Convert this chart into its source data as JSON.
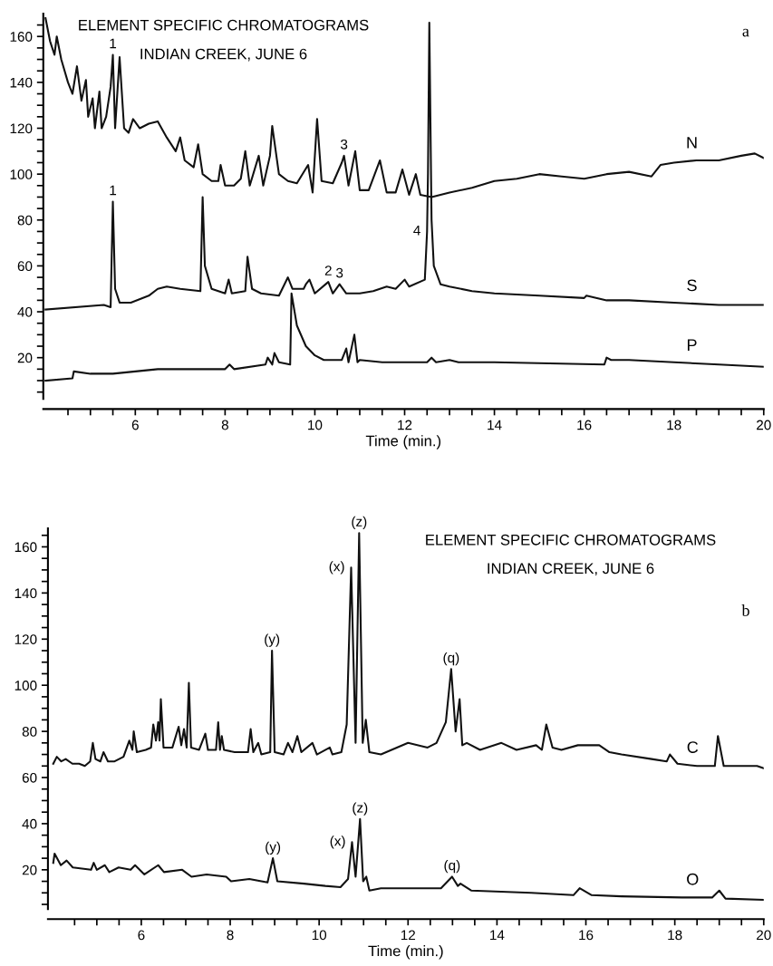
{
  "chart_data": [
    {
      "type": "line",
      "title": "ELEMENT SPECIFIC CHROMATOGRAMS",
      "subtitle": "INDIAN CREEK, JUNE 6",
      "xlabel": "Time (min.)",
      "xlim": [
        3.95,
        20
      ],
      "ylim": [
        2,
        170
      ],
      "xticks": [
        {
          "value": 4.5,
          "label": null
        },
        {
          "value": 5,
          "label": null
        },
        {
          "value": 5.5,
          "label": null
        },
        6,
        {
          "value": 6.5,
          "label": null
        },
        {
          "value": 7,
          "label": null
        },
        {
          "value": 7.5,
          "label": null
        },
        8,
        {
          "value": 8.5,
          "label": null
        },
        {
          "value": 9,
          "label": null
        },
        {
          "value": 9.5,
          "label": null
        },
        10,
        {
          "value": 10.5,
          "label": null
        },
        {
          "value": 11,
          "label": null
        },
        {
          "value": 11.5,
          "label": null
        },
        12,
        {
          "value": 12.5,
          "label": null
        },
        {
          "value": 13,
          "label": null
        },
        {
          "value": 13.5,
          "label": null
        },
        14,
        {
          "value": 14.5,
          "label": null
        },
        {
          "value": 15,
          "label": null
        },
        {
          "value": 15.5,
          "label": null
        },
        16,
        {
          "value": 16.5,
          "label": null
        },
        {
          "value": 17,
          "label": null
        },
        {
          "value": 17.5,
          "label": null
        },
        18,
        {
          "value": 18.5,
          "label": null
        },
        {
          "value": 19,
          "label": null
        },
        {
          "value": 19.5,
          "label": null
        },
        20
      ],
      "yticks": [
        {
          "value": 5,
          "label": null
        },
        {
          "value": 10,
          "label": null
        },
        {
          "value": 15,
          "label": null
        },
        20,
        {
          "value": 25,
          "label": null
        },
        {
          "value": 30,
          "label": null
        },
        {
          "value": 35,
          "label": null
        },
        40,
        {
          "value": 45,
          "label": null
        },
        {
          "value": 50,
          "label": null
        },
        {
          "value": 55,
          "label": null
        },
        60,
        {
          "value": 65,
          "label": null
        },
        {
          "value": 70,
          "label": null
        },
        {
          "value": 75,
          "label": null
        },
        80,
        {
          "value": 85,
          "label": null
        },
        {
          "value": 90,
          "label": null
        },
        {
          "value": 95,
          "label": null
        },
        100,
        {
          "value": 105,
          "label": null
        },
        {
          "value": 110,
          "label": null
        },
        {
          "value": 115,
          "label": null
        },
        120,
        {
          "value": 125,
          "label": null
        },
        {
          "value": 130,
          "label": null
        },
        {
          "value": 135,
          "label": null
        },
        140,
        {
          "value": 145,
          "label": null
        },
        {
          "value": 150,
          "label": null
        },
        {
          "value": 155,
          "label": null
        },
        160,
        {
          "value": 165,
          "label": null
        }
      ],
      "grid": false,
      "legend": false,
      "marker": "none",
      "line_style": "solid",
      "series": [
        {
          "name": "N",
          "color": "#111111",
          "x": [
            4.0,
            4.1,
            4.2,
            4.25,
            4.35,
            4.5,
            4.6,
            4.7,
            4.8,
            4.9,
            4.95,
            5.05,
            5.1,
            5.2,
            5.25,
            5.35,
            5.45,
            5.5,
            5.55,
            5.65,
            5.75,
            5.85,
            5.95,
            6.1,
            6.3,
            6.5,
            6.7,
            6.9,
            7.0,
            7.1,
            7.3,
            7.4,
            7.5,
            7.7,
            7.85,
            7.9,
            8.0,
            8.2,
            8.35,
            8.45,
            8.55,
            8.75,
            8.85,
            9.0,
            9.05,
            9.2,
            9.4,
            9.6,
            9.85,
            9.95,
            10.05,
            10.15,
            10.4,
            10.6,
            10.65,
            10.75,
            10.9,
            11.0,
            11.2,
            11.45,
            11.6,
            11.8,
            11.95,
            12.1,
            12.25,
            12.35,
            12.6,
            13.0,
            13.5,
            14.0,
            14.5,
            15.0,
            15.5,
            16.0,
            16.5,
            17.0,
            17.5,
            17.7,
            18.0,
            18.5,
            19.0,
            19.5,
            19.8,
            20.0
          ],
          "values": [
            168,
            158,
            152,
            160,
            150,
            140,
            135,
            147,
            132,
            141,
            125,
            133,
            120,
            136,
            120,
            125,
            138,
            152,
            120,
            151,
            120,
            118,
            124,
            120,
            122,
            123,
            116,
            110,
            116,
            106,
            103,
            113,
            100,
            97,
            97,
            104,
            95,
            95,
            98,
            110,
            95,
            108,
            95,
            108,
            121,
            100,
            97,
            96,
            104,
            92,
            124,
            97,
            96,
            105,
            108,
            95,
            110,
            93,
            93,
            106,
            92,
            92,
            102,
            91,
            100,
            91,
            90,
            92,
            94,
            97,
            98,
            100,
            99,
            98,
            100,
            101,
            99,
            104,
            105,
            106,
            106,
            108,
            109,
            107
          ]
        },
        {
          "name": "S",
          "color": "#111111",
          "x": [
            4.0,
            5.3,
            5.45,
            5.5,
            5.55,
            5.65,
            5.9,
            6.3,
            6.5,
            6.7,
            7.0,
            7.45,
            7.5,
            7.55,
            7.7,
            8.0,
            8.08,
            8.15,
            8.45,
            8.5,
            8.6,
            8.8,
            9.2,
            9.4,
            9.5,
            9.75,
            9.8,
            9.88,
            10.0,
            10.3,
            10.4,
            10.55,
            10.7,
            11.0,
            11.3,
            11.6,
            11.8,
            12.0,
            12.1,
            12.45,
            12.5,
            12.52,
            12.55,
            12.6,
            12.65,
            12.8,
            13.0,
            13.5,
            14.0,
            15.0,
            16.0,
            16.05,
            16.5,
            17.0,
            18.0,
            19.0,
            20.0
          ],
          "values": [
            41,
            43,
            42,
            88,
            50,
            44,
            44,
            47,
            50,
            51,
            50,
            49,
            90,
            60,
            50,
            48,
            54,
            48,
            49,
            64,
            50,
            48,
            47,
            55,
            50,
            50,
            52,
            54,
            48,
            53,
            48,
            52,
            48,
            48,
            49,
            51,
            50,
            54,
            51,
            54,
            75,
            100,
            166,
            80,
            60,
            52,
            51,
            49,
            48,
            47,
            46,
            47,
            45,
            45,
            44,
            43,
            43
          ]
        },
        {
          "name": "P",
          "color": "#111111",
          "x": [
            4.0,
            4.6,
            4.63,
            5.0,
            5.5,
            6.0,
            6.5,
            7.0,
            7.5,
            8.0,
            8.1,
            8.2,
            8.9,
            8.95,
            9.05,
            9.1,
            9.2,
            9.45,
            9.48,
            9.6,
            9.8,
            10.0,
            10.2,
            10.6,
            10.7,
            10.75,
            10.88,
            10.95,
            11.0,
            11.5,
            12.0,
            12.5,
            12.6,
            12.7,
            13.0,
            13.2,
            14.0,
            16.45,
            16.5,
            16.6,
            17.0,
            18.0,
            19.0,
            20.0
          ],
          "values": [
            10,
            11,
            14,
            13,
            13,
            14,
            15,
            15,
            15,
            15,
            17,
            15,
            17,
            20,
            17,
            22,
            18,
            17,
            48,
            34,
            25,
            21,
            19,
            19,
            24,
            18,
            30,
            18,
            19,
            18,
            18,
            18,
            20,
            18,
            19,
            18,
            18,
            17,
            20,
            19,
            19,
            18,
            17,
            16
          ]
        }
      ],
      "annotations": [
        "a",
        {
          "text": "1",
          "x": 5.5,
          "y": 152
        },
        {
          "text": "3",
          "x": 10.65,
          "y": 108
        },
        {
          "text": "1",
          "x": 5.5,
          "y": 88
        },
        {
          "text": "2",
          "x": 10.3,
          "y": 53
        },
        {
          "text": "3",
          "x": 10.55,
          "y": 52
        },
        {
          "text": "4",
          "x": 12.5,
          "y": 75
        }
      ]
    },
    {
      "type": "line",
      "title": "ELEMENT SPECIFIC CHROMATOGRAMS",
      "subtitle": "INDIAN CREEK, JUNE 6",
      "xlabel": "Time (min.)",
      "xlim": [
        3.9,
        20
      ],
      "ylim": [
        3,
        168
      ],
      "xticks": [
        {
          "value": 4.5,
          "label": null
        },
        {
          "value": 5,
          "label": null
        },
        {
          "value": 5.5,
          "label": null
        },
        6,
        {
          "value": 6.5,
          "label": null
        },
        {
          "value": 7,
          "label": null
        },
        {
          "value": 7.5,
          "label": null
        },
        8,
        {
          "value": 8.5,
          "label": null
        },
        {
          "value": 9,
          "label": null
        },
        {
          "value": 9.5,
          "label": null
        },
        10,
        {
          "value": 10.5,
          "label": null
        },
        {
          "value": 11,
          "label": null
        },
        {
          "value": 11.5,
          "label": null
        },
        12,
        {
          "value": 12.5,
          "label": null
        },
        {
          "value": 13,
          "label": null
        },
        {
          "value": 13.5,
          "label": null
        },
        14,
        {
          "value": 14.5,
          "label": null
        },
        {
          "value": 15,
          "label": null
        },
        {
          "value": 15.5,
          "label": null
        },
        16,
        {
          "value": 16.5,
          "label": null
        },
        {
          "value": 17,
          "label": null
        },
        {
          "value": 17.5,
          "label": null
        },
        18,
        {
          "value": 18.5,
          "label": null
        },
        {
          "value": 19,
          "label": null
        },
        {
          "value": 19.5,
          "label": null
        },
        20
      ],
      "yticks": [
        {
          "value": 5,
          "label": null
        },
        {
          "value": 10,
          "label": null
        },
        {
          "value": 15,
          "label": null
        },
        20,
        {
          "value": 25,
          "label": null
        },
        {
          "value": 30,
          "label": null
        },
        {
          "value": 35,
          "label": null
        },
        40,
        {
          "value": 45,
          "label": null
        },
        {
          "value": 50,
          "label": null
        },
        {
          "value": 55,
          "label": null
        },
        60,
        {
          "value": 65,
          "label": null
        },
        {
          "value": 70,
          "label": null
        },
        {
          "value": 75,
          "label": null
        },
        80,
        {
          "value": 85,
          "label": null
        },
        {
          "value": 90,
          "label": null
        },
        {
          "value": 95,
          "label": null
        },
        100,
        {
          "value": 105,
          "label": null
        },
        {
          "value": 110,
          "label": null
        },
        {
          "value": 115,
          "label": null
        },
        120,
        {
          "value": 125,
          "label": null
        },
        {
          "value": 130,
          "label": null
        },
        {
          "value": 135,
          "label": null
        },
        140,
        {
          "value": 145,
          "label": null
        },
        {
          "value": 150,
          "label": null
        },
        {
          "value": 155,
          "label": null
        },
        160,
        {
          "value": 165,
          "label": null
        }
      ],
      "grid": false,
      "legend": false,
      "marker": "none",
      "line_style": "solid",
      "series": [
        {
          "name": "C",
          "color": "#111111",
          "x": [
            4.02,
            4.1,
            4.2,
            4.3,
            4.45,
            4.6,
            4.73,
            4.85,
            4.91,
            4.97,
            5.08,
            5.15,
            5.25,
            5.4,
            5.6,
            5.73,
            5.8,
            5.83,
            5.9,
            6.1,
            6.22,
            6.27,
            6.33,
            6.38,
            6.41,
            6.44,
            6.5,
            6.7,
            6.84,
            6.9,
            6.96,
            7.02,
            7.07,
            7.12,
            7.3,
            7.44,
            7.5,
            7.68,
            7.73,
            7.77,
            7.81,
            7.86,
            8.1,
            8.4,
            8.46,
            8.52,
            8.63,
            8.7,
            8.9,
            8.94,
            9.0,
            9.2,
            9.3,
            9.4,
            9.51,
            9.6,
            9.85,
            9.95,
            10.24,
            10.3,
            10.5,
            10.62,
            10.72,
            10.82,
            10.9,
            10.98,
            11.05,
            11.13,
            11.39,
            12.0,
            12.44,
            12.64,
            12.85,
            12.97,
            13.07,
            13.16,
            13.22,
            13.32,
            13.62,
            14.1,
            14.44,
            14.88,
            15.01,
            15.11,
            15.25,
            15.45,
            15.82,
            16.3,
            16.53,
            16.8,
            17.48,
            17.82,
            17.89,
            18.06,
            18.5,
            18.9,
            18.97,
            19.1,
            19.85,
            20.0
          ],
          "values": [
            66,
            69,
            67,
            68,
            66,
            66,
            65,
            67,
            75,
            68,
            67,
            71,
            67,
            67,
            69,
            76,
            72,
            80,
            71,
            72,
            73,
            83,
            76,
            84,
            76,
            94,
            73,
            73,
            82,
            74,
            81,
            73,
            101,
            73,
            72,
            79,
            72,
            72,
            84,
            72,
            78,
            72,
            71,
            71,
            81,
            71,
            75,
            70,
            71,
            115,
            71,
            70,
            75,
            71,
            78,
            71,
            75,
            70,
            73,
            70,
            71,
            83,
            151,
            75,
            166,
            75,
            85,
            71,
            70,
            75,
            73,
            75,
            84,
            107,
            80,
            94,
            74,
            75,
            72,
            75,
            72,
            74,
            72,
            83,
            73,
            72,
            74,
            74,
            71,
            70,
            68,
            67,
            70,
            66,
            65,
            65,
            78,
            65,
            65,
            64
          ]
        },
        {
          "name": "O",
          "color": "#111111",
          "x": [
            4.02,
            4.05,
            4.19,
            4.32,
            4.46,
            4.87,
            4.93,
            5.0,
            5.18,
            5.28,
            5.49,
            5.76,
            5.86,
            6.07,
            6.38,
            6.51,
            6.92,
            7.13,
            7.47,
            7.91,
            8.02,
            8.43,
            8.84,
            8.96,
            9.06,
            9.66,
            10.14,
            10.48,
            10.65,
            10.74,
            10.82,
            10.92,
            10.99,
            11.06,
            11.13,
            11.39,
            12.74,
            12.99,
            13.12,
            13.18,
            13.42,
            14.77,
            15.72,
            15.86,
            16.13,
            16.8,
            18.16,
            18.84,
            19.0,
            19.14,
            20.0
          ],
          "values": [
            23,
            27,
            22,
            24,
            21,
            20,
            23,
            20,
            22,
            19,
            21,
            20,
            22,
            18,
            22,
            19,
            20,
            17,
            18,
            17,
            15,
            16,
            14.5,
            25,
            15,
            14,
            13,
            12.5,
            16,
            32,
            17,
            42,
            15,
            17,
            11,
            12,
            12,
            17,
            13,
            14,
            11,
            10,
            9,
            12,
            9,
            8.5,
            8,
            8,
            11,
            7.5,
            7
          ]
        }
      ],
      "annotations": [
        "b",
        {
          "text": "(x)",
          "x": 10.72,
          "y": 151
        },
        {
          "text": "(z)",
          "x": 10.9,
          "y": 166
        },
        {
          "text": "(y)",
          "x": 8.94,
          "y": 115
        },
        {
          "text": "(q)",
          "x": 12.97,
          "y": 107
        },
        {
          "text": "(y)",
          "x": 8.96,
          "y": 25
        },
        {
          "text": "(x)",
          "x": 10.74,
          "y": 32
        },
        {
          "text": "(z)",
          "x": 10.92,
          "y": 42
        },
        {
          "text": "(q)",
          "x": 12.99,
          "y": 17
        }
      ]
    }
  ]
}
